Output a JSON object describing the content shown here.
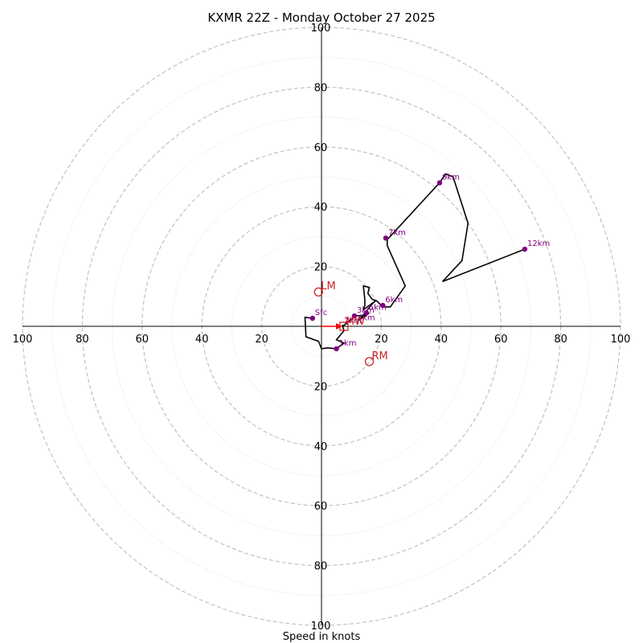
{
  "title": "KXMR 22Z - Monday October 27 2025",
  "chart_data": {
    "type": "scatter",
    "title": "KXMR 22Z - Monday October 27 2025",
    "xlabel": "Speed in knots",
    "ylabel": "",
    "units": "knots",
    "xlim": [
      -100,
      100
    ],
    "ylim": [
      -100,
      100
    ],
    "rings": [
      20,
      40,
      60,
      80,
      100
    ],
    "minor_rings": [
      10,
      30,
      50,
      70,
      90
    ],
    "ticks": [
      {
        "v": -100,
        "label": "100"
      },
      {
        "v": -80,
        "label": "80"
      },
      {
        "v": -60,
        "label": "60"
      },
      {
        "v": -40,
        "label": "40"
      },
      {
        "v": -20,
        "label": "20"
      },
      {
        "v": 20,
        "label": "20"
      },
      {
        "v": 40,
        "label": "40"
      },
      {
        "v": 60,
        "label": "60"
      },
      {
        "v": 80,
        "label": "80"
      },
      {
        "v": 100,
        "label": "100"
      }
    ],
    "hodograph_trace": [
      [
        -3,
        2.7
      ],
      [
        -5.5,
        3
      ],
      [
        -5.2,
        -3.5
      ],
      [
        -1,
        -5
      ],
      [
        0,
        -7.5
      ],
      [
        2,
        -7.2
      ],
      [
        5,
        -7.5
      ],
      [
        7.5,
        -5.6
      ],
      [
        5,
        -4.5
      ],
      [
        7.5,
        -1.5
      ],
      [
        7,
        0.5
      ],
      [
        7.2,
        0
      ],
      [
        10,
        2.5
      ],
      [
        11.5,
        3.5
      ],
      [
        15,
        3.7
      ],
      [
        16,
        4.5
      ],
      [
        12.5,
        2
      ],
      [
        17,
        7.5
      ],
      [
        18,
        8.5
      ],
      [
        14,
        5.5
      ],
      [
        14.5,
        7
      ],
      [
        14.5,
        9
      ],
      [
        14,
        13.5
      ],
      [
        16,
        13
      ],
      [
        15.5,
        11
      ],
      [
        17,
        9
      ],
      [
        18.5,
        8.5
      ],
      [
        20.5,
        6.5
      ],
      [
        23,
        6.5
      ],
      [
        25.5,
        10
      ],
      [
        28,
        13.5
      ],
      [
        22,
        27
      ],
      [
        22,
        29
      ],
      [
        39.5,
        48
      ],
      [
        41.5,
        51
      ],
      [
        44,
        50
      ],
      [
        49,
        34.5
      ],
      [
        47,
        22
      ],
      [
        40.5,
        15
      ],
      [
        68,
        25.8
      ]
    ],
    "height_markers": [
      {
        "label": "Sfc",
        "u": -3,
        "v": 2.7
      },
      {
        "label": "1km",
        "u": 5,
        "v": -7.5
      },
      {
        "label": "3km",
        "u": 11,
        "v": 3.5
      },
      {
        "label": "5km",
        "u": 15,
        "v": 4.5
      },
      {
        "label": "6km",
        "u": 20.5,
        "v": 7
      },
      {
        "label": "7km",
        "u": 21.5,
        "v": 29.5
      },
      {
        "label": "9km",
        "u": 39.5,
        "v": 48
      },
      {
        "label": "12km",
        "u": 68,
        "v": 25.8
      }
    ],
    "overlapping_labels": [
      {
        "label": "2km",
        "u": 7,
        "v": 0.5
      },
      {
        "label": "4km",
        "u": 11.5,
        "v": 1.5
      }
    ],
    "storm_motion": [
      {
        "label": "LM",
        "u": -1,
        "v": 11.5
      },
      {
        "label": "RM",
        "u": 16,
        "v": -11.8
      }
    ],
    "mean_wind": {
      "label": "MW",
      "u": 7.5,
      "v": 0
    },
    "shear_vector": {
      "from": [
        0,
        0
      ],
      "to": [
        7,
        0
      ]
    }
  }
}
